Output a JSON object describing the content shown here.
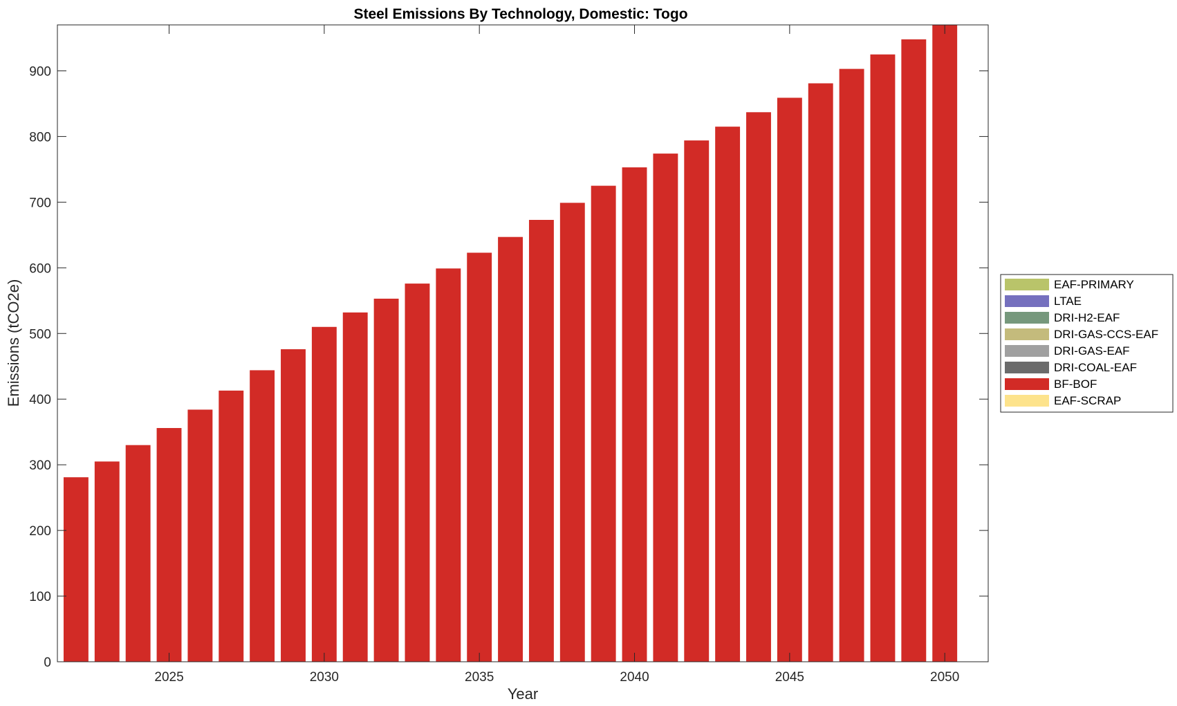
{
  "chart_data": {
    "type": "bar",
    "title": "Steel Emissions By Technology, Domestic: Togo",
    "xlabel": "Year",
    "ylabel": "Emissions (tCO2e)",
    "x": [
      2022,
      2023,
      2024,
      2025,
      2026,
      2027,
      2028,
      2029,
      2030,
      2031,
      2032,
      2033,
      2034,
      2035,
      2036,
      2037,
      2038,
      2039,
      2040,
      2041,
      2042,
      2043,
      2044,
      2045,
      2046,
      2047,
      2048,
      2049,
      2050
    ],
    "xticks": [
      2025,
      2030,
      2035,
      2040,
      2045,
      2050
    ],
    "xlim": [
      2021.4,
      2051.4
    ],
    "ylim": [
      0,
      970
    ],
    "yticks": [
      0,
      100,
      200,
      300,
      400,
      500,
      600,
      700,
      800,
      900
    ],
    "grid": false,
    "stacked": true,
    "legend_position": "right",
    "series": [
      {
        "name": "EAF-PRIMARY",
        "color": "#b9c46a",
        "values": [
          0,
          0,
          0,
          0,
          0,
          0,
          0,
          0,
          0,
          0,
          0,
          0,
          0,
          0,
          0,
          0,
          0,
          0,
          0,
          0,
          0,
          0,
          0,
          0,
          0,
          0,
          0,
          0,
          0
        ]
      },
      {
        "name": "LTAE",
        "color": "#7570be",
        "values": [
          0,
          0,
          0,
          0,
          0,
          0,
          0,
          0,
          0,
          0,
          0,
          0,
          0,
          0,
          0,
          0,
          0,
          0,
          0,
          0,
          0,
          0,
          0,
          0,
          0,
          0,
          0,
          0,
          0
        ]
      },
      {
        "name": "DRI-H2-EAF",
        "color": "#76987c",
        "values": [
          0,
          0,
          0,
          0,
          0,
          0,
          0,
          0,
          0,
          0,
          0,
          0,
          0,
          0,
          0,
          0,
          0,
          0,
          0,
          0,
          0,
          0,
          0,
          0,
          0,
          0,
          0,
          0,
          0
        ]
      },
      {
        "name": "DRI-GAS-CCS-EAF",
        "color": "#c4bb7c",
        "values": [
          0,
          0,
          0,
          0,
          0,
          0,
          0,
          0,
          0,
          0,
          0,
          0,
          0,
          0,
          0,
          0,
          0,
          0,
          0,
          0,
          0,
          0,
          0,
          0,
          0,
          0,
          0,
          0,
          0
        ]
      },
      {
        "name": "DRI-GAS-EAF",
        "color": "#a0a0a0",
        "values": [
          0,
          0,
          0,
          0,
          0,
          0,
          0,
          0,
          0,
          0,
          0,
          0,
          0,
          0,
          0,
          0,
          0,
          0,
          0,
          0,
          0,
          0,
          0,
          0,
          0,
          0,
          0,
          0,
          0
        ]
      },
      {
        "name": "DRI-COAL-EAF",
        "color": "#6b6b6b",
        "values": [
          0,
          0,
          0,
          0,
          0,
          0,
          0,
          0,
          0,
          0,
          0,
          0,
          0,
          0,
          0,
          0,
          0,
          0,
          0,
          0,
          0,
          0,
          0,
          0,
          0,
          0,
          0,
          0,
          0
        ]
      },
      {
        "name": "BF-BOF",
        "color": "#d22b26",
        "values": [
          281,
          305,
          330,
          356,
          384,
          413,
          444,
          476,
          510,
          532,
          553,
          576,
          599,
          623,
          647,
          673,
          699,
          725,
          753,
          774,
          794,
          815,
          837,
          859,
          881,
          903,
          925,
          948,
          972
        ]
      },
      {
        "name": "EAF-SCRAP",
        "color": "#fde38c",
        "values": [
          0,
          0,
          0,
          0,
          0,
          0,
          0,
          0,
          0,
          0,
          0,
          0,
          0,
          0,
          0,
          0,
          0,
          0,
          0,
          0,
          0,
          0,
          0,
          0,
          0,
          0,
          0,
          0,
          0
        ]
      }
    ]
  }
}
